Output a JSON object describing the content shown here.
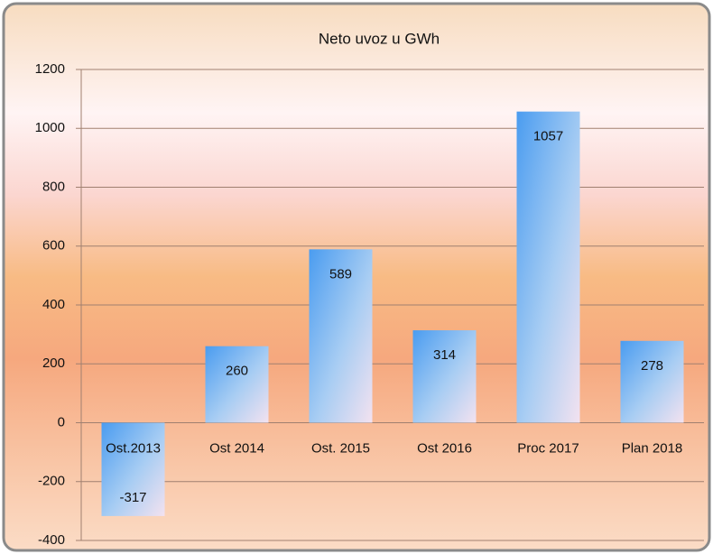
{
  "chart_data": {
    "type": "bar",
    "title": "Neto uvoz u GWh",
    "categories": [
      "Ost.2013",
      "Ost 2014",
      "Ost. 2015",
      "Ost 2016",
      "Proc 2017",
      "Plan 2018"
    ],
    "values": [
      -317,
      260,
      589,
      314,
      1057,
      278
    ],
    "ylim": [
      -400,
      1200
    ],
    "yticks": [
      -400,
      -200,
      0,
      200,
      400,
      600,
      800,
      1000,
      1200
    ],
    "grid": true
  }
}
